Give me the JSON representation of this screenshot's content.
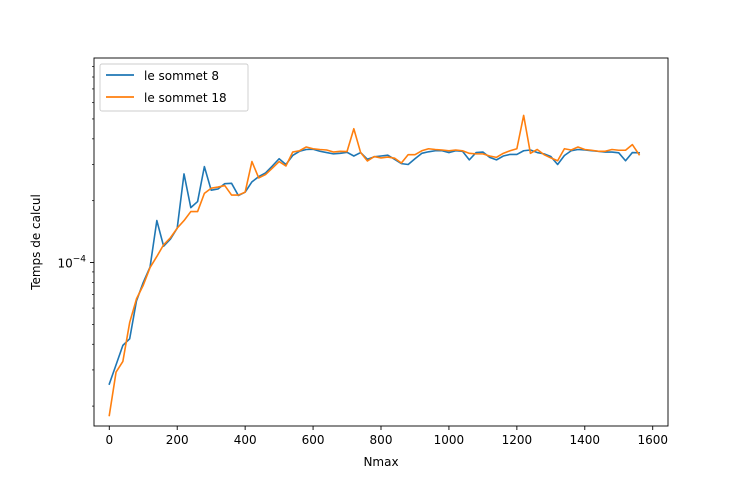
{
  "chart_data": {
    "type": "line",
    "title": "",
    "xlabel": "Nmax",
    "ylabel": "Temps de calcul",
    "y_scale": "log",
    "xlim": [
      -45,
      1645
    ],
    "ylim": [
      1.6e-05,
      0.00099
    ],
    "xticks": [
      0,
      200,
      400,
      600,
      800,
      1000,
      1200,
      1400,
      1600
    ],
    "xtick_labels": [
      "0",
      "200",
      "400",
      "600",
      "800",
      "1000",
      "1200",
      "1400",
      "1600"
    ],
    "yticks": [
      0.0001
    ],
    "ytick_labels_base": "10",
    "ytick_labels_exp": [
      "−4"
    ],
    "grid": false,
    "legend_position": "top-left",
    "series": [
      {
        "name": "le sommet 8",
        "color": "#1f77b4",
        "points": [
          [
            0,
            2.56e-05
          ],
          [
            20,
            3.18e-05
          ],
          [
            40,
            3.95e-05
          ],
          [
            60,
            4.25e-05
          ],
          [
            80,
            6.5e-05
          ],
          [
            100,
            8e-05
          ],
          [
            120,
            9.5e-05
          ],
          [
            140,
            0.00016
          ],
          [
            160,
            0.00012
          ],
          [
            180,
            0.00013
          ],
          [
            200,
            0.000147
          ],
          [
            220,
            0.00027
          ],
          [
            240,
            0.000185
          ],
          [
            260,
            0.000198
          ],
          [
            280,
            0.000293
          ],
          [
            300,
            0.000225
          ],
          [
            320,
            0.000228
          ],
          [
            340,
            0.000242
          ],
          [
            360,
            0.000243
          ],
          [
            380,
            0.000212
          ],
          [
            400,
            0.00022
          ],
          [
            420,
            0.000247
          ],
          [
            440,
            0.000262
          ],
          [
            460,
            0.000273
          ],
          [
            480,
            0.000295
          ],
          [
            500,
            0.00032
          ],
          [
            520,
            0.0003
          ],
          [
            540,
            0.000332
          ],
          [
            560,
            0.000348
          ],
          [
            580,
            0.000355
          ],
          [
            600,
            0.000356
          ],
          [
            620,
            0.000348
          ],
          [
            640,
            0.000343
          ],
          [
            660,
            0.000338
          ],
          [
            680,
            0.00034
          ],
          [
            700,
            0.000344
          ],
          [
            720,
            0.00033
          ],
          [
            740,
            0.000343
          ],
          [
            760,
            0.000318
          ],
          [
            780,
            0.000327
          ],
          [
            800,
            0.00033
          ],
          [
            820,
            0.000333
          ],
          [
            840,
            0.000318
          ],
          [
            860,
            0.000303
          ],
          [
            880,
            0.0003
          ],
          [
            900,
            0.00032
          ],
          [
            920,
            0.00034
          ],
          [
            940,
            0.000346
          ],
          [
            960,
            0.00035
          ],
          [
            980,
            0.00035
          ],
          [
            1000,
            0.000343
          ],
          [
            1020,
            0.00035
          ],
          [
            1040,
            0.000348
          ],
          [
            1060,
            0.000316
          ],
          [
            1080,
            0.000343
          ],
          [
            1100,
            0.000345
          ],
          [
            1120,
            0.000325
          ],
          [
            1140,
            0.000316
          ],
          [
            1160,
            0.00033
          ],
          [
            1180,
            0.000336
          ],
          [
            1200,
            0.000336
          ],
          [
            1220,
            0.00035
          ],
          [
            1240,
            0.000353
          ],
          [
            1260,
            0.000343
          ],
          [
            1280,
            0.000338
          ],
          [
            1300,
            0.000328
          ],
          [
            1320,
            0.0003
          ],
          [
            1340,
            0.000332
          ],
          [
            1360,
            0.00035
          ],
          [
            1380,
            0.000355
          ],
          [
            1400,
            0.000353
          ],
          [
            1420,
            0.00035
          ],
          [
            1440,
            0.000348
          ],
          [
            1460,
            0.000345
          ],
          [
            1480,
            0.000345
          ],
          [
            1500,
            0.000342
          ],
          [
            1520,
            0.000313
          ],
          [
            1540,
            0.000343
          ],
          [
            1560,
            0.000342
          ]
        ]
      },
      {
        "name": "le sommet 18",
        "color": "#ff7f0e",
        "points": [
          [
            0,
            1.8e-05
          ],
          [
            20,
            2.93e-05
          ],
          [
            40,
            3.3e-05
          ],
          [
            60,
            5.1e-05
          ],
          [
            80,
            6.65e-05
          ],
          [
            100,
            7.75e-05
          ],
          [
            120,
            9.45e-05
          ],
          [
            140,
            0.000107
          ],
          [
            160,
            0.000122
          ],
          [
            180,
            0.000132
          ],
          [
            200,
            0.000147
          ],
          [
            220,
            0.00016
          ],
          [
            240,
            0.000177
          ],
          [
            260,
            0.000177
          ],
          [
            280,
            0.000217
          ],
          [
            300,
            0.00023
          ],
          [
            320,
            0.000233
          ],
          [
            340,
            0.000237
          ],
          [
            360,
            0.000213
          ],
          [
            380,
            0.000213
          ],
          [
            400,
            0.00022
          ],
          [
            420,
            0.00031
          ],
          [
            440,
            0.000258
          ],
          [
            460,
            0.000268
          ],
          [
            480,
            0.000288
          ],
          [
            500,
            0.00031
          ],
          [
            520,
            0.000295
          ],
          [
            540,
            0.000345
          ],
          [
            560,
            0.00035
          ],
          [
            580,
            0.000365
          ],
          [
            600,
            0.000358
          ],
          [
            620,
            0.000355
          ],
          [
            640,
            0.000353
          ],
          [
            660,
            0.000345
          ],
          [
            680,
            0.000348
          ],
          [
            700,
            0.000347
          ],
          [
            720,
            0.000448
          ],
          [
            740,
            0.000343
          ],
          [
            760,
            0.000312
          ],
          [
            780,
            0.000328
          ],
          [
            800,
            0.000323
          ],
          [
            820,
            0.000326
          ],
          [
            840,
            0.000322
          ],
          [
            860,
            0.000305
          ],
          [
            880,
            0.000335
          ],
          [
            900,
            0.000335
          ],
          [
            920,
            0.00035
          ],
          [
            940,
            0.000358
          ],
          [
            960,
            0.000355
          ],
          [
            980,
            0.000353
          ],
          [
            1000,
            0.00035
          ],
          [
            1020,
            0.000353
          ],
          [
            1040,
            0.00035
          ],
          [
            1060,
            0.00034
          ],
          [
            1080,
            0.000338
          ],
          [
            1100,
            0.000338
          ],
          [
            1120,
            0.00033
          ],
          [
            1140,
            0.000325
          ],
          [
            1160,
            0.00034
          ],
          [
            1180,
            0.00035
          ],
          [
            1200,
            0.000358
          ],
          [
            1220,
            0.00052
          ],
          [
            1240,
            0.00034
          ],
          [
            1260,
            0.000355
          ],
          [
            1280,
            0.000335
          ],
          [
            1300,
            0.000323
          ],
          [
            1320,
            0.000313
          ],
          [
            1340,
            0.000358
          ],
          [
            1360,
            0.000353
          ],
          [
            1380,
            0.000365
          ],
          [
            1400,
            0.000355
          ],
          [
            1420,
            0.000352
          ],
          [
            1440,
            0.000348
          ],
          [
            1460,
            0.000348
          ],
          [
            1480,
            0.000355
          ],
          [
            1500,
            0.000352
          ],
          [
            1520,
            0.000352
          ],
          [
            1540,
            0.000375
          ],
          [
            1560,
            0.000335
          ]
        ]
      }
    ]
  }
}
